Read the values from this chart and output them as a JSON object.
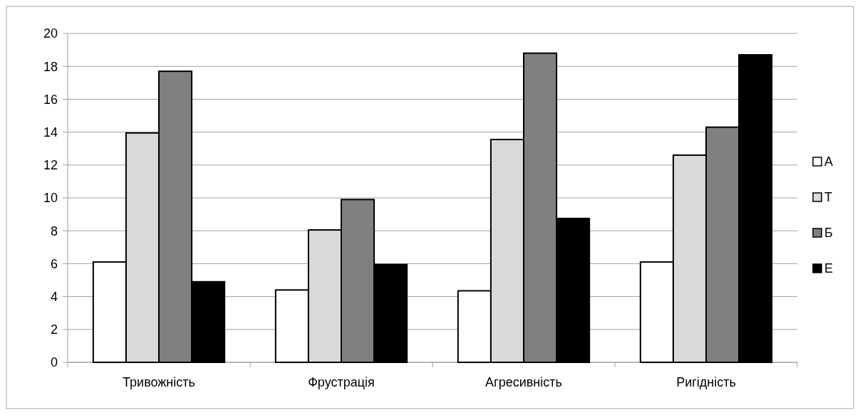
{
  "chart_data": {
    "type": "bar",
    "categories": [
      "Тривожність",
      "Фрустрація",
      "Агресивність",
      "Ригідність"
    ],
    "series": [
      {
        "name": "А",
        "color": "#ffffff",
        "values": [
          6.1,
          4.4,
          4.35,
          6.1
        ]
      },
      {
        "name": "Т",
        "color": "#d9d9d9",
        "values": [
          13.95,
          8.05,
          13.55,
          12.6
        ]
      },
      {
        "name": "Б",
        "color": "#808080",
        "values": [
          17.7,
          9.9,
          18.8,
          14.3
        ]
      },
      {
        "name": "Е",
        "color": "#000000",
        "values": [
          4.9,
          5.95,
          8.75,
          18.7
        ]
      }
    ],
    "ylim": [
      0,
      20
    ],
    "yticks": [
      0,
      2,
      4,
      6,
      8,
      10,
      12,
      14,
      16,
      18,
      20
    ],
    "grid": "y",
    "legend": "right"
  }
}
